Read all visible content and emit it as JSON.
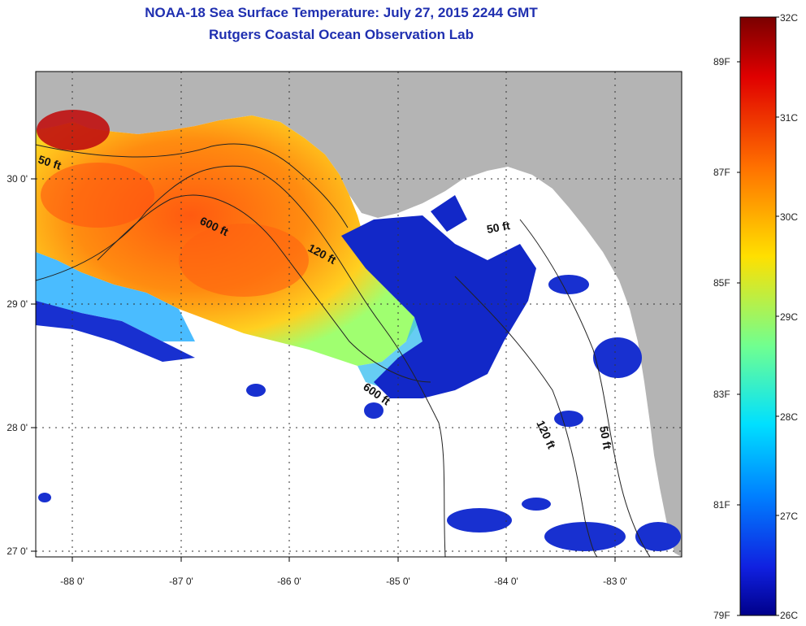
{
  "title": "NOAA-18 Sea Surface Temperature:  July 27, 2015 2244 GMT",
  "subtitle": "Rutgers Coastal Ocean Observation Lab",
  "map": {
    "lon_labels": [
      "-88 0'",
      "-87 0'",
      "-86 0'",
      "-85 0'",
      "-84 0'",
      "-83 0'"
    ],
    "lat_labels": [
      "30 0'",
      "29 0'",
      "28 0'",
      "27 0'"
    ],
    "contour_labels": [
      "50 ft",
      "600 ft",
      "120 ft",
      "50 ft",
      "600 ft",
      "120 ft",
      "50 ft"
    ],
    "colors": {
      "land": "#b4b4b4",
      "cloud": "#ffffff"
    }
  },
  "colorbar": {
    "celsius": [
      "32C",
      "31C",
      "30C",
      "29C",
      "28C",
      "27C",
      "26C"
    ],
    "fahrenheit": [
      "89F",
      "87F",
      "85F",
      "83F",
      "81F",
      "79F"
    ]
  }
}
